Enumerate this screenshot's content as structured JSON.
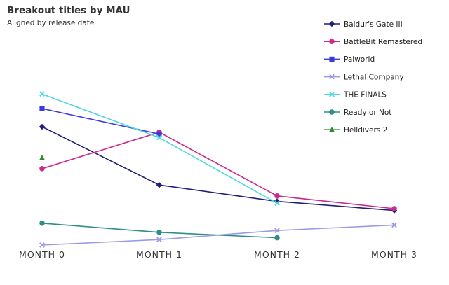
{
  "chart_data": {
    "type": "line",
    "title": "Breakout titles by MAU",
    "subtitle": "Aligned by release date",
    "xlabel": "",
    "ylabel": "",
    "categories": [
      "MONTH 0",
      "MONTH 1",
      "MONTH 2",
      "MONTH 3"
    ],
    "ylim": [
      0,
      100
    ],
    "grid": false,
    "legend_position": "top-right",
    "series": [
      {
        "name": "Baldur's Gate III",
        "color": "#1f1f7a",
        "marker": "diamond",
        "values": [
          65,
          33,
          24,
          19
        ]
      },
      {
        "name": "BattleBit Remastered",
        "color": "#cc2a8c",
        "marker": "circle",
        "values": [
          42,
          62,
          27,
          20
        ]
      },
      {
        "name": "Palworld",
        "color": "#3b3bdb",
        "marker": "square",
        "values": [
          75,
          61,
          null,
          null
        ]
      },
      {
        "name": "Lethal Company",
        "color": "#9a9ae6",
        "marker": "x",
        "values": [
          0,
          3,
          8,
          11
        ]
      },
      {
        "name": "THE FINALS",
        "color": "#4dd9e0",
        "marker": "x",
        "values": [
          83,
          59,
          23,
          null
        ]
      },
      {
        "name": "Ready or Not",
        "color": "#2e8f86",
        "marker": "circle",
        "values": [
          12,
          7,
          4,
          null
        ]
      },
      {
        "name": "Helldivers 2",
        "color": "#2d8a2d",
        "marker": "triangle",
        "values": [
          48,
          null,
          null,
          null
        ]
      }
    ]
  }
}
